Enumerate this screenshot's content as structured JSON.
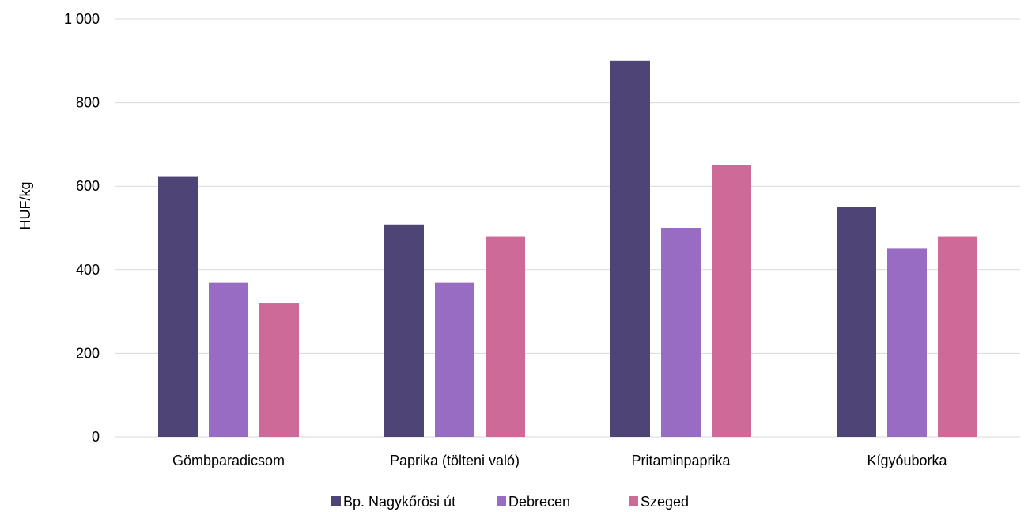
{
  "chart_data": {
    "type": "bar",
    "ylabel": "HUF/kg",
    "ylim": [
      0,
      1000
    ],
    "yticks": [
      0,
      200,
      400,
      600,
      800,
      1000
    ],
    "ytick_labels": [
      "0",
      "200",
      "400",
      "600",
      "800",
      "1 000"
    ],
    "grid": true,
    "legend_position": "bottom",
    "categories": [
      "Gömbparadicsom",
      "Paprika (tölteni való)",
      "Pritaminpaprika",
      "Kígyóuborka"
    ],
    "series": [
      {
        "name": "Bp. Nagykőrösi út",
        "color": "#4e4476",
        "values": [
          622,
          508,
          900,
          550
        ]
      },
      {
        "name": "Debrecen",
        "color": "#976cc2",
        "values": [
          370,
          370,
          500,
          450
        ]
      },
      {
        "name": "Szeged",
        "color": "#cd6a98",
        "values": [
          320,
          480,
          650,
          480
        ]
      }
    ]
  }
}
